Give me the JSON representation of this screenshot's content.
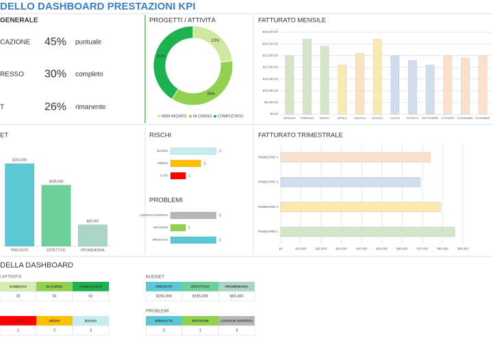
{
  "header": {
    "title": "DELLO DASHBOARD PRESTAZIONI KPI"
  },
  "overview": {
    "title": "GENERALE",
    "rows": [
      {
        "label": "CAZIONE",
        "percent": "45%",
        "status": "puntuale"
      },
      {
        "label": "RESSO",
        "percent": "30%",
        "status": "completo"
      },
      {
        "label": "T",
        "percent": "26%",
        "status": "rimanente"
      }
    ]
  },
  "chart_data": [
    {
      "type": "donut",
      "title": "PROGETTI / ATTIVITÀ",
      "categories": [
        "NON INIZIATO",
        "IN CORSO",
        "COMPLETATO"
      ],
      "values": [
        23,
        36,
        41
      ],
      "value_labels": [
        "23%",
        "36%",
        "41%"
      ],
      "colors": [
        "#cfe8a0",
        "#92d050",
        "#1db150"
      ],
      "legend": "bottom"
    },
    {
      "type": "bar",
      "title": "FATTURATO MENSILE",
      "categories": [
        "GENNAIO",
        "FEBBRAIO",
        "MARZO",
        "APRILE",
        "MAGGIO",
        "GIUGNO",
        "LUGLIO",
        "AGOSTO",
        "SETTEMBRE",
        "OTTOBRE",
        "NOVEMBRE",
        "DICEMBRE"
      ],
      "values": [
        25000,
        32000,
        29000,
        21000,
        26000,
        32000,
        25000,
        23000,
        21000,
        25000,
        24000,
        25000
      ],
      "colors": [
        "#d5e5c8",
        "#d5e5c8",
        "#d5e5c8",
        "#fbe9b0",
        "#fbe3bf",
        "#fbe9b0",
        "#d2dcef",
        "#d2dcef",
        "#d2dcef",
        "#fbe0cc",
        "#fbe0cc",
        "#fbe0cc"
      ],
      "ylim": [
        0,
        35000
      ],
      "yticks": [
        {
          "value": 0,
          "label": "$0.00"
        },
        {
          "value": 5000,
          "label": "$5,000.00"
        },
        {
          "value": 10000,
          "label": "$10,000.00"
        },
        {
          "value": 15000,
          "label": "$15,000.00"
        },
        {
          "value": 20000,
          "label": "$20,000.00"
        },
        {
          "value": 25000,
          "label": "$25,000.00"
        },
        {
          "value": 30000,
          "label": "$30,000.00"
        },
        {
          "value": 35000,
          "label": "$35,000.00"
        }
      ],
      "grid": true
    },
    {
      "type": "bar",
      "title": "ET",
      "categories": [
        "PREVISTO",
        "EFFETTIVO",
        "PROMEMORIA"
      ],
      "values": [
        250000,
        185000,
        65000
      ],
      "value_labels": [
        "$250,000",
        "$185,000",
        "$65,000"
      ],
      "colors": [
        "#5bc8d6",
        "#6dd09a",
        "#a9d4c6"
      ],
      "ylim": [
        0,
        300000
      ]
    },
    {
      "type": "barh",
      "title": "RISCHI",
      "categories": [
        "BASSO",
        "MEDIO",
        "ALTO"
      ],
      "values": [
        3,
        2,
        1
      ],
      "colors": [
        "#c5ecef",
        "#ffc000",
        "#ff0000"
      ],
      "xlim": [
        0,
        5
      ],
      "data_labels": true
    },
    {
      "type": "barh",
      "title": "PROBLEMI",
      "categories": [
        "AZIONI IN SOSPESO",
        "REVISIONI",
        "IRRISOLTO"
      ],
      "values": [
        3,
        1,
        3
      ],
      "colors": [
        "#b4b9b4",
        "#92d050",
        "#5bc8d6"
      ],
      "xlim": [
        0,
        5
      ],
      "data_labels": true
    },
    {
      "type": "barh",
      "title": "FATTURATO TRIMESTRALE",
      "categories": [
        "TRIMESTRE 4",
        "TRIMESTRE 3",
        "TRIMESTRE 2",
        "TRIMESTRE 1"
      ],
      "values": [
        74000,
        69000,
        79000,
        86000
      ],
      "colors": [
        "#fbe0cc",
        "#d2dcef",
        "#fbe9b0",
        "#d5e5c8"
      ],
      "xlim": [
        0,
        90000
      ],
      "xticks": [
        {
          "value": 0,
          "label": "$0"
        },
        {
          "value": 10000,
          "label": "$10,000"
        },
        {
          "value": 20000,
          "label": "$20,000"
        },
        {
          "value": 30000,
          "label": "$30,000"
        },
        {
          "value": 40000,
          "label": "$40,000"
        },
        {
          "value": 50000,
          "label": "$50,000"
        },
        {
          "value": 60000,
          "label": "$60,000"
        },
        {
          "value": 70000,
          "label": "$70,000"
        },
        {
          "value": 80000,
          "label": "$80,000"
        },
        {
          "value": 90000,
          "label": "$90,000"
        }
      ],
      "grid": true
    }
  ],
  "tables": {
    "title": "DELLA DASHBOARD",
    "items": [
      {
        "title": "/ ATTIVITÀ",
        "headers": [
          "N INIZIATO",
          "IN CORSO",
          "COMPLETATO"
        ],
        "colors": [
          "#d6ecb0",
          "#92d050",
          "#1db150"
        ],
        "values": [
          35,
          55,
          62
        ]
      },
      {
        "title": "BUDGET",
        "headers": [
          "PREVISTO",
          "EFFETTIVO",
          "PROMEMORIA"
        ],
        "colors": [
          "#5bc8d6",
          "#6dd09a",
          "#a9d4c6"
        ],
        "values": [
          "$250,000",
          "$185,000",
          "$65,000"
        ]
      },
      {
        "headers": [
          "LTO",
          "MEDIO",
          "BASSO"
        ],
        "colors": [
          "#ff0000",
          "#ffc000",
          "#c5ecef"
        ],
        "values": [
          1,
          2,
          3
        ]
      },
      {
        "title": "PROBLEMI",
        "headers": [
          "IRRISOLTO",
          "REVISIONI",
          "AZIONI IN SOSPESO"
        ],
        "colors": [
          "#5bc8d6",
          "#92d050",
          "#b4b9b4"
        ],
        "values": [
          3,
          1,
          3
        ]
      }
    ]
  }
}
